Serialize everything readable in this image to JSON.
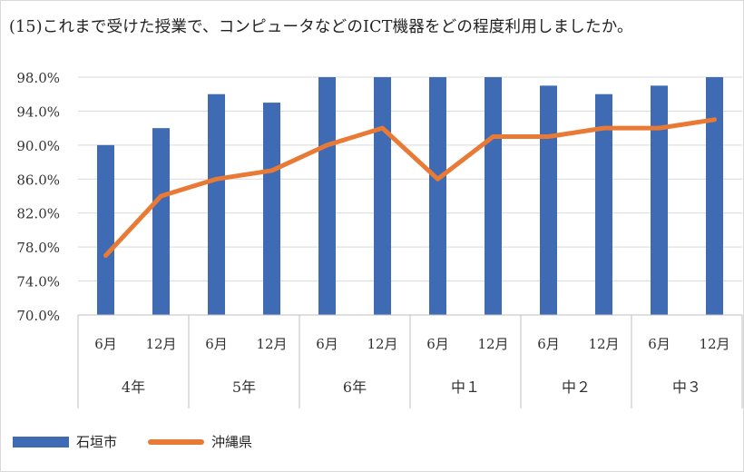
{
  "title": "(15)これまで受けた授業で、コンピュータなどのICT機器をどの程度利用しましたか。",
  "colors": {
    "bar": "#3f6bb5",
    "line": "#e97a35",
    "grid": "#d9d9d9",
    "axis": "#bfbfbf"
  },
  "chart_data": {
    "type": "bar",
    "title": "(15)これまで受けた授業で、コンピュータなどのICT機器をどの程度利用しましたか。",
    "categories": [
      "6月",
      "12月",
      "6月",
      "12月",
      "6月",
      "12月",
      "6月",
      "12月",
      "6月",
      "12月",
      "6月",
      "12月"
    ],
    "groups": [
      "4年",
      "5年",
      "6年",
      "中１",
      "中２",
      "中３"
    ],
    "series": [
      {
        "name": "石垣市",
        "type": "bar",
        "values": [
          90,
          92,
          96,
          95,
          98,
          98,
          98,
          98,
          97,
          96,
          97,
          98
        ]
      },
      {
        "name": "沖縄県",
        "type": "line",
        "values": [
          77,
          84,
          86,
          87,
          90,
          92,
          86,
          91,
          91,
          92,
          92,
          93
        ]
      }
    ],
    "yticks": [
      "70.0%",
      "74.0%",
      "78.0%",
      "82.0%",
      "86.0%",
      "90.0%",
      "94.0%",
      "98.0%"
    ],
    "ylim": [
      70,
      98
    ],
    "ystep": 4,
    "grid": true,
    "legend": "bottom-left"
  }
}
